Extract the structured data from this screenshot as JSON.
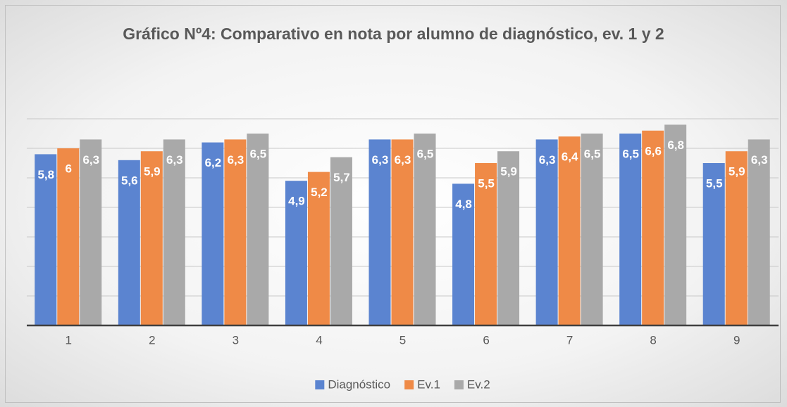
{
  "chart_data": {
    "type": "bar",
    "title": "Gráfico Nº4:  Comparativo en nota por alumno de diagnóstico, ev. 1 y 2",
    "categories": [
      "1",
      "2",
      "3",
      "4",
      "5",
      "6",
      "7",
      "8",
      "9"
    ],
    "series": [
      {
        "name": "Diagnóstico",
        "color": "#5b84d0",
        "values": [
          5.8,
          5.6,
          6.2,
          4.9,
          6.3,
          4.8,
          6.3,
          6.5,
          5.5
        ],
        "value_labels": [
          "5,8",
          "5,6",
          "6,2",
          "4,9",
          "6,3",
          "4,8",
          "6,3",
          "6,5",
          "5,5"
        ]
      },
      {
        "name": "Ev.1",
        "color": "#ef8a47",
        "values": [
          6,
          5.9,
          6.3,
          5.2,
          6.3,
          5.5,
          6.4,
          6.6,
          5.9
        ],
        "value_labels": [
          "6",
          "5,9",
          "6,3",
          "5,2",
          "6,3",
          "5,5",
          "6,4",
          "6,6",
          "5,9"
        ]
      },
      {
        "name": "Ev.2",
        "color": "#a9a9a9",
        "values": [
          6.3,
          6.3,
          6.5,
          5.7,
          6.5,
          5.9,
          6.5,
          6.8,
          6.3
        ],
        "value_labels": [
          "6,3",
          "6,3",
          "6,5",
          "5,7",
          "6,5",
          "5,9",
          "6,5",
          "6,8",
          "6,3"
        ]
      }
    ],
    "ylim": [
      0,
      7
    ],
    "yticks": [
      0,
      1,
      2,
      3,
      4,
      5,
      6,
      7
    ],
    "grid": true,
    "legend": "bottom"
  }
}
